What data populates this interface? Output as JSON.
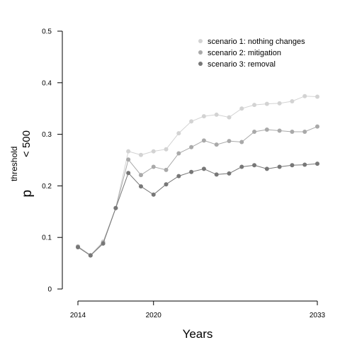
{
  "chart_data": {
    "type": "line",
    "xlabel": "Years",
    "ylabel": {
      "main": "p",
      "superscript": "threshold",
      "subscript": "< 500"
    },
    "xlim": [
      2014,
      2033
    ],
    "ylim": [
      0,
      0.5
    ],
    "x_ticks": [
      2014,
      2020,
      2033
    ],
    "y_ticks": [
      0,
      0.1,
      0.2,
      0.3,
      0.4,
      0.5
    ],
    "x_tick_labels": [
      "2014",
      "2020",
      "2033"
    ],
    "y_tick_labels": [
      "0",
      "0.1",
      "0.2",
      "0.3",
      "0.4",
      "0.5"
    ],
    "grid": false,
    "legend_position": "top-right",
    "x": [
      2014,
      2015,
      2016,
      2017,
      2018,
      2019,
      2020,
      2021,
      2022,
      2023,
      2024,
      2025,
      2026,
      2027,
      2028,
      2029,
      2030,
      2031,
      2032,
      2033
    ],
    "series": [
      {
        "name": "scenario 1: nothing changes",
        "color": "#d3d3d3",
        "values": [
          0.083,
          0.066,
          0.092,
          0.157,
          0.267,
          0.26,
          0.267,
          0.271,
          0.302,
          0.325,
          0.335,
          0.338,
          0.333,
          0.35,
          0.357,
          0.359,
          0.36,
          0.364,
          0.374,
          0.373
        ]
      },
      {
        "name": "scenario 2: mitigation",
        "color": "#a9a9a9",
        "values": [
          0.082,
          0.065,
          0.09,
          0.157,
          0.251,
          0.221,
          0.237,
          0.231,
          0.263,
          0.275,
          0.288,
          0.28,
          0.287,
          0.285,
          0.305,
          0.309,
          0.307,
          0.305,
          0.305,
          0.315
        ]
      },
      {
        "name": "scenario 3: removal",
        "color": "#777777",
        "values": [
          0.081,
          0.065,
          0.088,
          0.157,
          0.225,
          0.199,
          0.183,
          0.203,
          0.219,
          0.227,
          0.233,
          0.222,
          0.224,
          0.237,
          0.24,
          0.233,
          0.237,
          0.24,
          0.241,
          0.243
        ]
      }
    ]
  }
}
